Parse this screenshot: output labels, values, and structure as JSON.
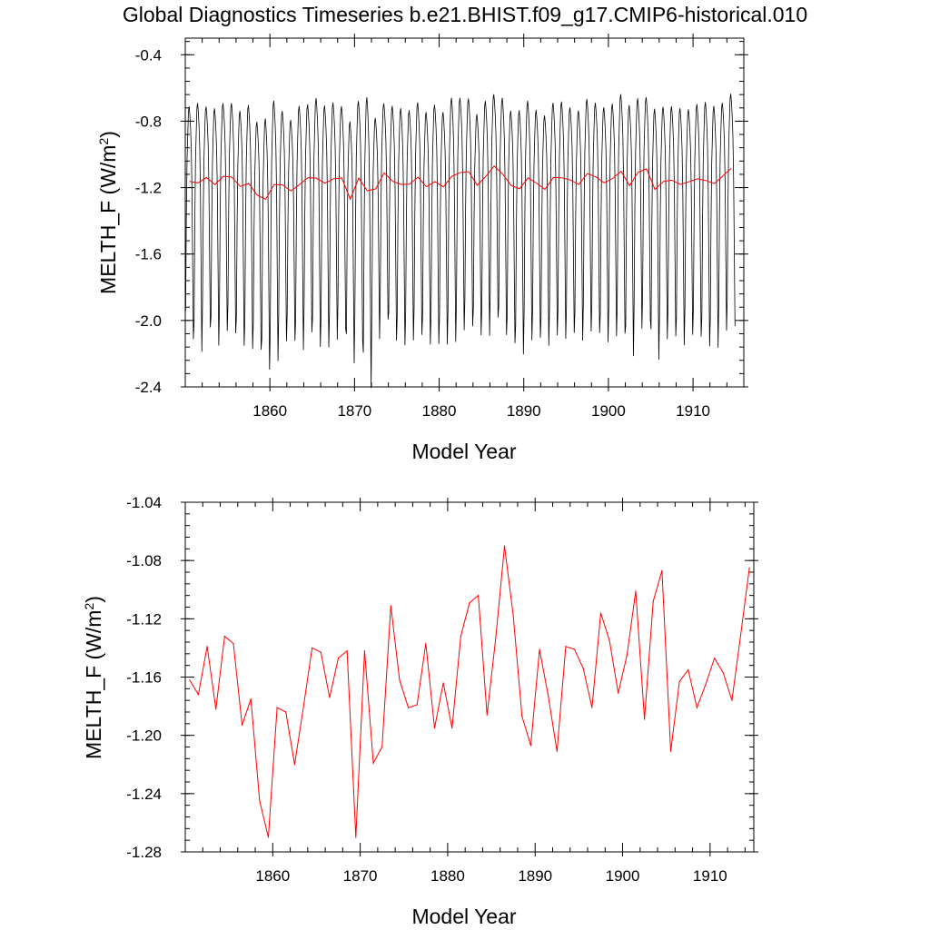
{
  "figure": {
    "title": "Global Diagnostics Timeseries b.e21.BHIST.f09_g17.CMIP6-historical.010"
  },
  "colors": {
    "monthly_line": "#000000",
    "annual_line": "#ff0000"
  },
  "chart_data": [
    {
      "type": "line",
      "panel": "top",
      "xlabel": "Model Year",
      "ylabel_main": "MELTH_F (W/m",
      "ylabel_sup": "2",
      "ylabel_end": ")",
      "xlim": [
        1850,
        1916
      ],
      "ylim": [
        -2.4,
        -0.3
      ],
      "xticks": [
        1860,
        1870,
        1880,
        1890,
        1900,
        1910
      ],
      "yticks": [
        -0.4,
        -0.8,
        -1.2,
        -1.6,
        -2.0,
        -2.4
      ],
      "ytick_labels": [
        "-0.4",
        "-0.8",
        "-1.2",
        "-1.6",
        "-2.0",
        "-2.4"
      ],
      "grid": false,
      "legend": "none",
      "monthly_cycle_shape": [
        -0.78,
        -0.22,
        0.12,
        0.28,
        0.42,
        0.45,
        0.4,
        0.32,
        0.2,
        -0.05,
        -0.5,
        -0.95
      ],
      "monthly_amplitude": [
        1.0,
        1.07,
        0.95,
        1.02,
        0.98,
        0.99,
        1.01,
        1.05,
        0.98,
        1.08,
        1.12,
        0.99,
        0.95,
        1.05,
        0.98,
        1.07,
        1.04,
        1.02,
        0.96,
        1.04,
        1.03,
        1.25,
        0.95,
        0.93,
        1.01,
        1.02,
        0.99,
        1.0,
        1.0,
        1.03,
        1.0,
        1.05,
        1.0,
        0.98,
        0.95,
        1.01,
        0.96,
        1.02,
        1.0,
        1.05,
        1.03,
        0.98,
        0.99,
        1.0,
        1.02,
        0.97,
        0.99,
        1.0,
        0.99,
        1.01,
        1.0,
        1.03,
        1.08,
        0.99,
        0.96,
        1.08,
        1.0,
        0.99,
        1.02,
        0.97,
        1.0,
        1.05,
        1.04,
        0.98,
        1.0
      ],
      "series": [
        {
          "style": "monthly",
          "color": "#000000",
          "values": "annual_mean_plus_cycle"
        },
        {
          "style": "annual",
          "color": "#ff0000",
          "values": "annual_values"
        }
      ]
    },
    {
      "type": "line",
      "panel": "bottom",
      "xlabel": "Model Year",
      "ylabel_main": "MELTH_F (W/m",
      "ylabel_sup": "2",
      "ylabel_end": ")",
      "xlim": [
        1850,
        1915
      ],
      "ylim": [
        -1.28,
        -1.04
      ],
      "xticks": [
        1860,
        1870,
        1880,
        1890,
        1900,
        1910
      ],
      "yticks": [
        -1.04,
        -1.08,
        -1.12,
        -1.16,
        -1.2,
        -1.24,
        -1.28
      ],
      "ytick_labels": [
        "-1.04",
        "-1.08",
        "-1.12",
        "-1.16",
        "-1.20",
        "-1.24",
        "-1.28"
      ],
      "grid": false,
      "legend": "none",
      "x": [
        1850.5,
        1851.5,
        1852.5,
        1853.5,
        1854.5,
        1855.5,
        1856.5,
        1857.5,
        1858.5,
        1859.5,
        1860.5,
        1861.5,
        1862.5,
        1863.5,
        1864.5,
        1865.5,
        1866.5,
        1867.5,
        1868.5,
        1869.5,
        1870.5,
        1871.5,
        1872.5,
        1873.5,
        1874.5,
        1875.5,
        1876.5,
        1877.5,
        1878.5,
        1879.5,
        1880.5,
        1881.5,
        1882.5,
        1883.5,
        1884.5,
        1885.5,
        1886.5,
        1887.5,
        1888.5,
        1889.5,
        1890.5,
        1891.5,
        1892.5,
        1893.5,
        1894.5,
        1895.5,
        1896.5,
        1897.5,
        1898.5,
        1899.5,
        1900.5,
        1901.5,
        1902.5,
        1903.5,
        1904.5,
        1905.5,
        1906.5,
        1907.5,
        1908.5,
        1909.5,
        1910.5,
        1911.5,
        1912.5,
        1913.5,
        1914.5
      ],
      "annual_values": [
        -1.162,
        -1.172,
        -1.139,
        -1.182,
        -1.132,
        -1.137,
        -1.193,
        -1.175,
        -1.245,
        -1.27,
        -1.181,
        -1.184,
        -1.22,
        -1.181,
        -1.14,
        -1.143,
        -1.174,
        -1.147,
        -1.142,
        -1.27,
        -1.142,
        -1.219,
        -1.208,
        -1.111,
        -1.162,
        -1.181,
        -1.179,
        -1.137,
        -1.195,
        -1.164,
        -1.195,
        -1.132,
        -1.109,
        -1.104,
        -1.186,
        -1.133,
        -1.07,
        -1.118,
        -1.187,
        -1.207,
        -1.141,
        -1.173,
        -1.211,
        -1.139,
        -1.141,
        -1.154,
        -1.181,
        -1.116,
        -1.135,
        -1.171,
        -1.145,
        -1.101,
        -1.189,
        -1.108,
        -1.087,
        -1.211,
        -1.163,
        -1.155,
        -1.181,
        -1.165,
        -1.147,
        -1.157,
        -1.176,
        -1.131,
        -1.085
      ]
    }
  ]
}
